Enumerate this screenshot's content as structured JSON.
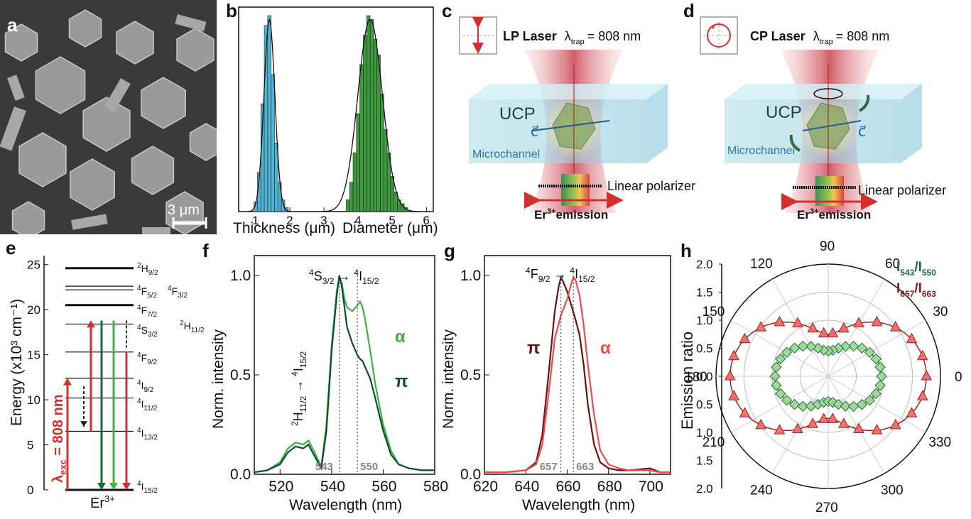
{
  "panels": {
    "a": "a",
    "b": "b",
    "c": "c",
    "d": "d",
    "e": "e",
    "f": "f",
    "g": "g",
    "h": "h"
  },
  "panel_a": {
    "scale_bar": "3 μm"
  },
  "panel_c": {
    "laser_prefix": "LP Laser",
    "lambda": "λ",
    "lambda_sub": "trap",
    "lambda_value": "= 808 nm",
    "ucp": "UCP",
    "c_vec": "c⃗",
    "microchannel": "Microchannel",
    "polarizer": "Linear polarizer",
    "emission_prefix": "Er",
    "emission_sup": "3+",
    "emission_suffix": "emission"
  },
  "panel_d": {
    "laser_prefix": "CP Laser",
    "lambda": "λ",
    "lambda_sub": "trap",
    "lambda_value": "= 808 nm",
    "ucp": "UCP",
    "c_vec": "c⃗",
    "microchannel": "Microchannel",
    "polarizer": "Linear polarizer",
    "emission_prefix": "Er",
    "emission_sup": "3+",
    "emission_suffix": "emission"
  },
  "panel_e": {
    "ylabel": "Energy (x10³ cm⁻¹)",
    "yticks": [
      "0",
      "5",
      "10",
      "15",
      "20",
      "25"
    ],
    "levels": [
      {
        "base": "4",
        "term": "I",
        "sub": "15/2"
      },
      {
        "base": "4",
        "term": "I",
        "sub": "13/2"
      },
      {
        "base": "4",
        "term": "I",
        "sub": "11/2"
      },
      {
        "base": "4",
        "term": "I",
        "sub": "9/2"
      },
      {
        "base": "4",
        "term": "F",
        "sub": "9/2"
      },
      {
        "base": "4",
        "term": "S",
        "sub": "3/2"
      },
      {
        "base": "2",
        "term": "H",
        "sub": "11/2"
      },
      {
        "base": "4",
        "term": "F",
        "sub": "7/2"
      },
      {
        "base": "4",
        "term": "F",
        "sub": "5/2"
      },
      {
        "base": "4",
        "term": "F",
        "sub": "3/2"
      },
      {
        "base": "2",
        "term": "H",
        "sub": "9/2"
      }
    ],
    "exc_label": "λ",
    "exc_sub": "exc",
    "exc_value": " = 808 nm",
    "ion": "Er",
    "ion_sup": "3+"
  },
  "chart_data": [
    {
      "panel": "b",
      "type": "bar",
      "xlabel_1": "Thickness (μm)",
      "xlabel_2": "Diameter (μm)",
      "xticks": [
        "1",
        "2",
        "3",
        "4",
        "5",
        "6"
      ],
      "xlim": [
        0.5,
        6.2
      ],
      "series": [
        {
          "name": "Thickness",
          "color": "#4fb3d3",
          "x": [
            1.0,
            1.1,
            1.2,
            1.3,
            1.4,
            1.5,
            1.6,
            1.7,
            1.8,
            1.9
          ],
          "values": [
            0.05,
            0.2,
            0.55,
            0.95,
            1.0,
            0.7,
            0.35,
            0.15,
            0.06,
            0.02
          ]
        },
        {
          "name": "Diameter",
          "color": "#3d9a3d",
          "x": [
            3.7,
            3.8,
            3.9,
            4.0,
            4.1,
            4.2,
            4.3,
            4.4,
            4.5,
            4.6,
            4.7,
            4.8,
            4.9,
            5.0,
            5.1,
            5.2,
            5.3,
            5.4
          ],
          "values": [
            0.06,
            0.15,
            0.3,
            0.5,
            0.75,
            0.9,
            1.0,
            0.98,
            0.88,
            0.8,
            0.6,
            0.42,
            0.3,
            0.18,
            0.1,
            0.06,
            0.04,
            0.02
          ]
        }
      ]
    },
    {
      "panel": "f",
      "type": "line",
      "xlabel": "Wavelength (nm)",
      "ylabel": "Norm. intensity",
      "xlim": [
        510,
        580
      ],
      "ylim": [
        0,
        1.1
      ],
      "xticks": [
        "520",
        "540",
        "560",
        "580"
      ],
      "yticks": [
        "0.0",
        "0.5",
        "1.0"
      ],
      "transition_1": {
        "a": "2",
        "b": "H",
        "bsub": "11/2",
        "c": "4",
        "d": "I",
        "dsub": "15/2"
      },
      "transition_2": {
        "a": "4",
        "b": "S",
        "bsub": "3/2",
        "c": "4",
        "d": "I",
        "dsub": "15/2"
      },
      "marks": [
        "543",
        "550"
      ],
      "series": [
        {
          "name": "α",
          "color": "#3cb043",
          "x": [
            510,
            515,
            520,
            523,
            526,
            529,
            531,
            533,
            536,
            538,
            540,
            542,
            543,
            544,
            545,
            546,
            548,
            550,
            551,
            552,
            553,
            555,
            557,
            560,
            563,
            566,
            570,
            575,
            580
          ],
          "y": [
            0.01,
            0.02,
            0.06,
            0.13,
            0.16,
            0.15,
            0.17,
            0.12,
            0.04,
            0.25,
            0.65,
            0.92,
            0.99,
            0.96,
            0.88,
            0.84,
            0.82,
            0.85,
            0.87,
            0.84,
            0.78,
            0.62,
            0.45,
            0.25,
            0.12,
            0.05,
            0.03,
            0.02,
            0.02
          ]
        },
        {
          "name": "π",
          "color": "#0b4f2e",
          "x": [
            510,
            515,
            520,
            523,
            526,
            529,
            531,
            533,
            536,
            538,
            540,
            542,
            543,
            544,
            545,
            546,
            548,
            550,
            551,
            552,
            553,
            555,
            557,
            560,
            563,
            566,
            570,
            575,
            580
          ],
          "y": [
            0.01,
            0.02,
            0.05,
            0.11,
            0.14,
            0.13,
            0.15,
            0.1,
            0.03,
            0.22,
            0.62,
            0.9,
            1.0,
            0.94,
            0.84,
            0.74,
            0.66,
            0.6,
            0.58,
            0.57,
            0.54,
            0.48,
            0.38,
            0.22,
            0.1,
            0.05,
            0.03,
            0.02,
            0.02
          ]
        }
      ]
    },
    {
      "panel": "g",
      "type": "line",
      "xlabel": "Wavelength (nm)",
      "ylabel": "Norm. intensity",
      "xlim": [
        620,
        710
      ],
      "ylim": [
        0,
        1.1
      ],
      "xticks": [
        "620",
        "640",
        "660",
        "680",
        "700"
      ],
      "yticks": [
        "0.0",
        "0.5",
        "1.0"
      ],
      "transition": {
        "a": "4",
        "b": "F",
        "bsub": "9/2",
        "c": "4",
        "d": "I",
        "dsub": "15/2"
      },
      "marks": [
        "657",
        "663"
      ],
      "series": [
        {
          "name": "π",
          "color": "#6b0f14",
          "x": [
            620,
            630,
            640,
            645,
            648,
            651,
            654,
            656,
            657,
            658,
            660,
            662,
            664,
            666,
            668,
            670,
            673,
            676,
            680,
            685,
            690,
            700,
            705,
            710
          ],
          "y": [
            0.01,
            0.01,
            0.02,
            0.06,
            0.2,
            0.5,
            0.82,
            0.95,
            0.99,
            0.97,
            0.92,
            0.85,
            0.78,
            0.7,
            0.55,
            0.35,
            0.15,
            0.06,
            0.03,
            0.02,
            0.02,
            0.03,
            0.01,
            0.01
          ]
        },
        {
          "name": "α",
          "color": "#f04a4a",
          "x": [
            620,
            630,
            640,
            645,
            648,
            651,
            654,
            657,
            660,
            662,
            663,
            664,
            666,
            668,
            670,
            673,
            676,
            680,
            685,
            690,
            700,
            705,
            710
          ],
          "y": [
            0.01,
            0.01,
            0.02,
            0.05,
            0.15,
            0.4,
            0.68,
            0.8,
            0.88,
            0.96,
            0.99,
            0.98,
            0.9,
            0.75,
            0.55,
            0.3,
            0.12,
            0.05,
            0.03,
            0.02,
            0.02,
            0.01,
            0.01
          ]
        }
      ]
    },
    {
      "panel": "h",
      "type": "scatter",
      "ylabel": "Emission ratio",
      "rticks": [
        "0.0",
        "0.5",
        "1.0",
        "1.5",
        "2.0"
      ],
      "angle_ticks": [
        "0",
        "30",
        "60",
        "90",
        "120",
        "150",
        "180",
        "210",
        "240",
        "270",
        "300",
        "330"
      ],
      "legend_1": {
        "text": "I",
        "sub_a": "543",
        "sep": "/I",
        "sub_b": "550"
      },
      "legend_2": {
        "text": "I",
        "sub_a": "657",
        "sep": "/I",
        "sub_b": "663"
      },
      "rmax": 2.0,
      "series": [
        {
          "name": "I543/I550",
          "color": "#9fd89a",
          "marker": "diamond",
          "a": 0.95,
          "b": 0.45
        },
        {
          "name": "I657/I663",
          "color": "#f07070",
          "marker": "triangle",
          "a": 1.75,
          "b": 0.75
        }
      ]
    }
  ]
}
